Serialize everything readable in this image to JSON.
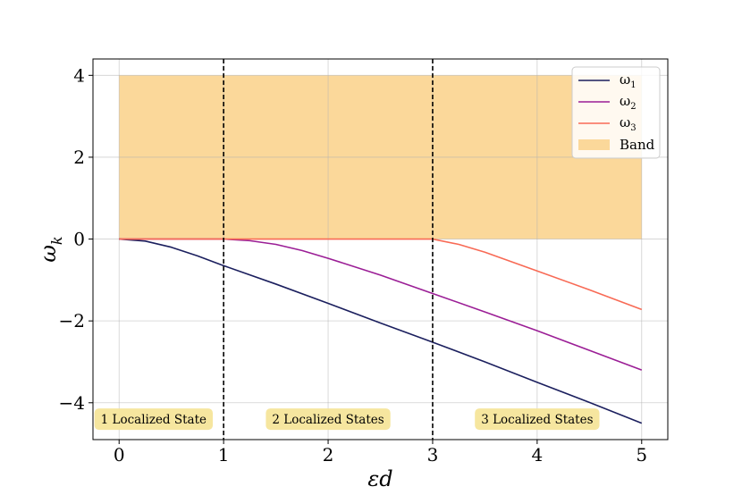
{
  "chart_data": {
    "type": "line",
    "xlabel": "εd",
    "ylabel": "ω_k",
    "xlim": [
      -0.25,
      5.25
    ],
    "ylim": [
      -4.9,
      4.4
    ],
    "x_ticks": [
      0,
      1,
      2,
      3,
      4,
      5
    ],
    "y_ticks": [
      -4,
      -2,
      0,
      2,
      4
    ],
    "x_tick_labels": [
      "0",
      "1",
      "2",
      "3",
      "4",
      "5"
    ],
    "y_tick_labels": [
      "−4",
      "−2",
      "0",
      "2",
      "4"
    ],
    "grid": true,
    "legend_position": "top-right",
    "band": {
      "name": "Band",
      "x": [
        0,
        5
      ],
      "y": [
        0,
        4
      ],
      "color": "#fbd89a"
    },
    "vertical_lines": [
      1,
      3
    ],
    "series": [
      {
        "name": "ω1",
        "color": "#1b1f5e",
        "x": [
          0,
          0.25,
          0.5,
          0.75,
          1.0,
          1.5,
          2.0,
          2.5,
          3.0,
          3.5,
          4.0,
          4.5,
          5.0
        ],
        "y": [
          0,
          -0.05,
          -0.2,
          -0.41,
          -0.65,
          -1.1,
          -1.57,
          -2.05,
          -2.52,
          -3.0,
          -3.5,
          -3.99,
          -4.5
        ]
      },
      {
        "name": "ω2",
        "color": "#9b1e96",
        "x": [
          0,
          1.0,
          1.25,
          1.5,
          1.75,
          2.0,
          2.5,
          3.0,
          3.5,
          4.0,
          4.5,
          5.0
        ],
        "y": [
          0,
          0,
          -0.04,
          -0.13,
          -0.28,
          -0.47,
          -0.88,
          -1.33,
          -1.78,
          -2.24,
          -2.72,
          -3.2
        ]
      },
      {
        "name": "ω3",
        "color": "#f86a55",
        "x": [
          0,
          3.0,
          3.25,
          3.5,
          3.75,
          4.0,
          4.5,
          5.0
        ],
        "y": [
          0,
          0,
          -0.13,
          -0.32,
          -0.55,
          -0.78,
          -1.24,
          -1.72
        ]
      }
    ],
    "annotations": [
      {
        "text": "1 Localized State",
        "x": 0.33,
        "y": -4.4
      },
      {
        "text": "2 Localized States",
        "x": 2.0,
        "y": -4.4
      },
      {
        "text": "3 Localized States",
        "x": 4.0,
        "y": -4.4
      }
    ],
    "annotation_color": "#f6e59a"
  }
}
